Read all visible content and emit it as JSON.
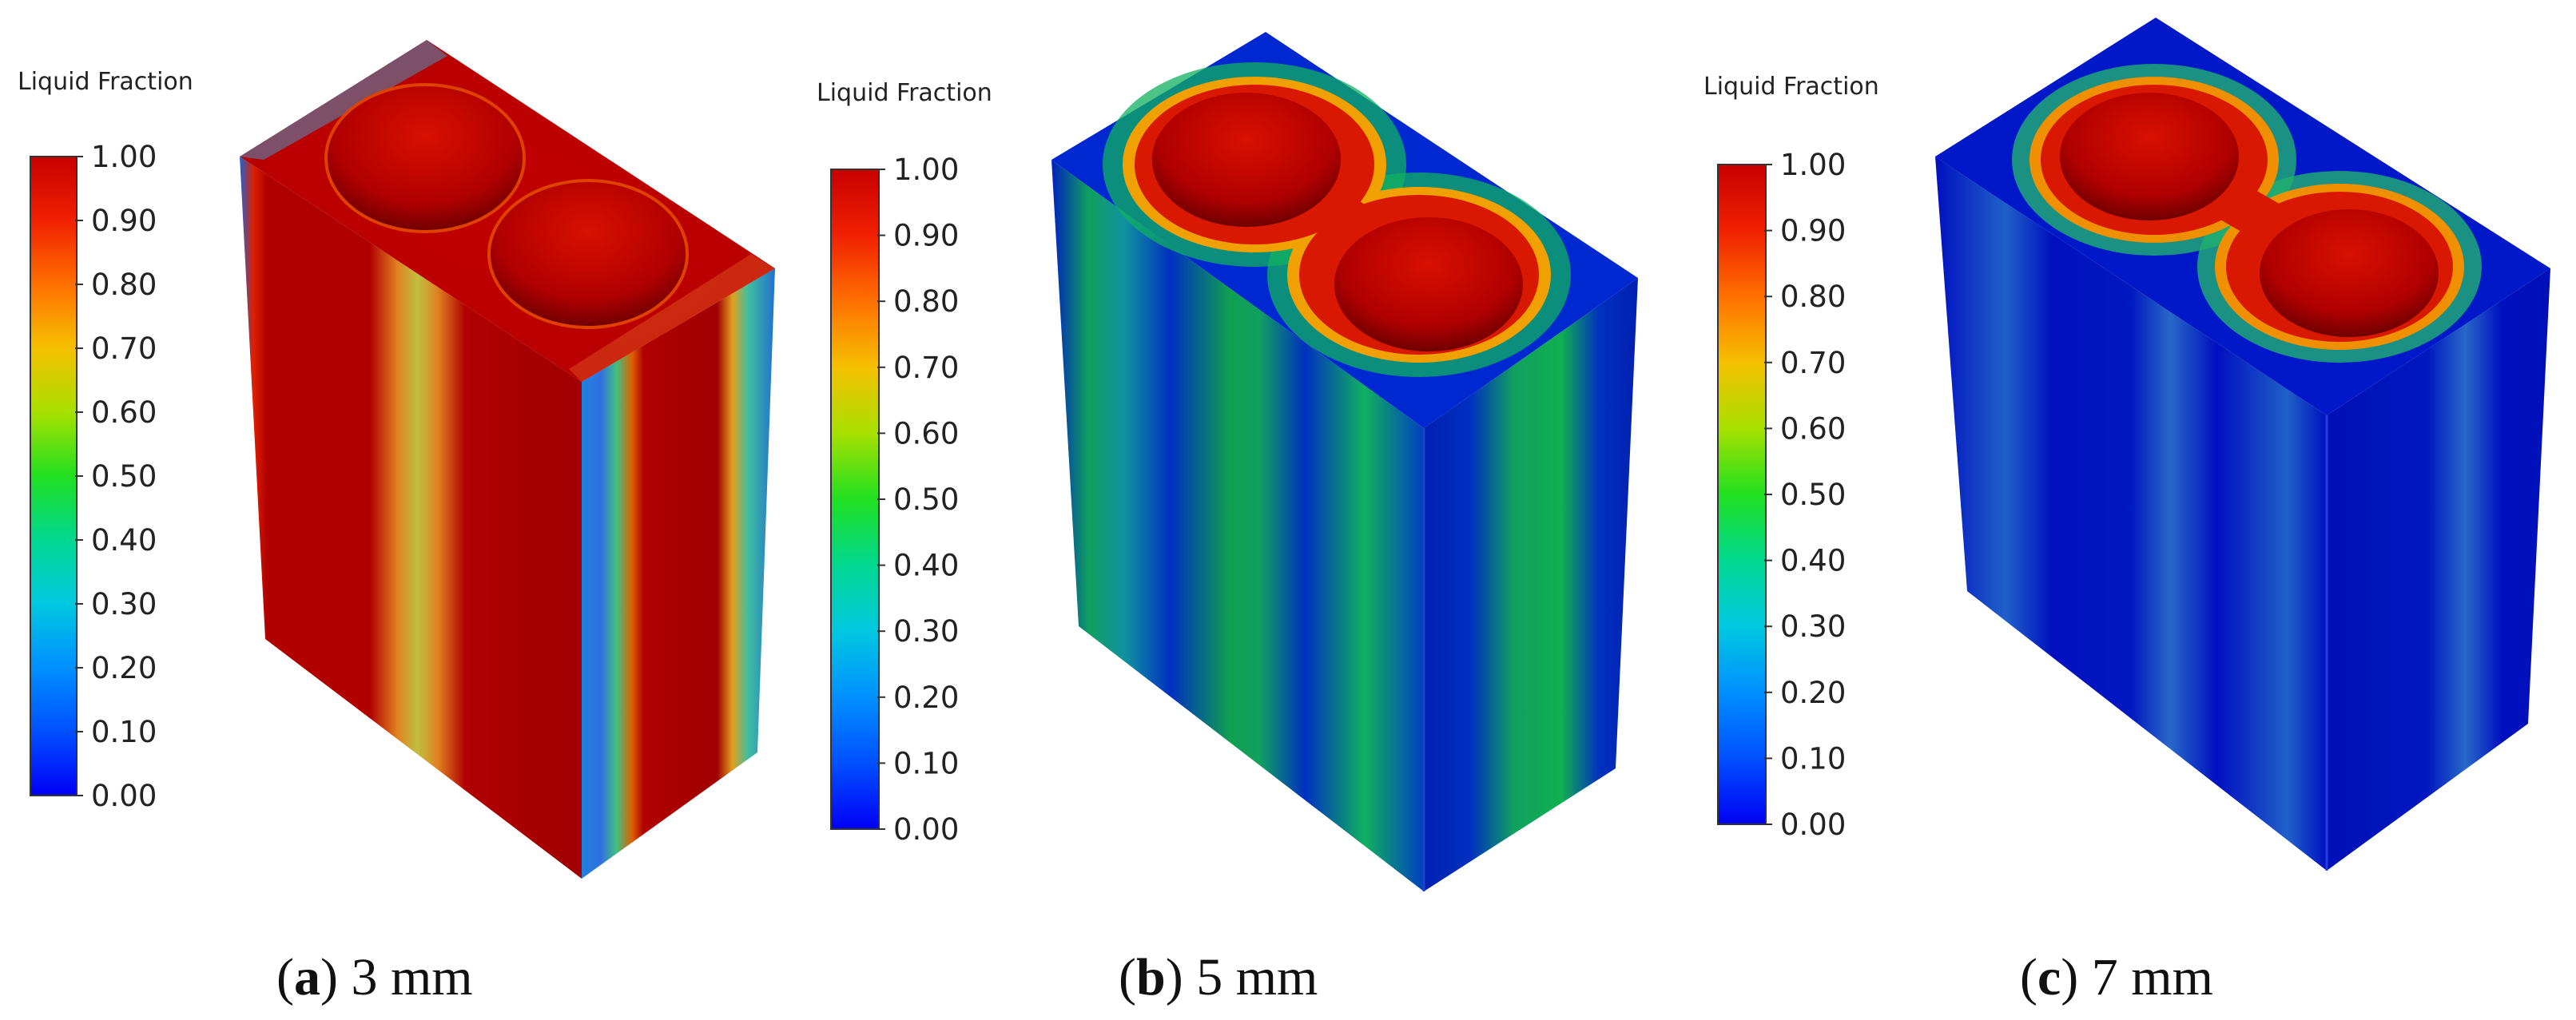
{
  "colorbar": {
    "title": "Liquid Fraction",
    "ticks": [
      "1.00",
      "0.90",
      "0.80",
      "0.70",
      "0.60",
      "0.50",
      "0.40",
      "0.30",
      "0.20",
      "0.10",
      "0.00"
    ],
    "colors": [
      "#0000ff",
      "#0080ff",
      "#00d0ff",
      "#00e060",
      "#60ff00",
      "#e0ff00",
      "#ffd000",
      "#ff8000",
      "#ff3000",
      "#ff0000"
    ]
  },
  "panels": [
    {
      "letter": "a",
      "label": "3 mm"
    },
    {
      "letter": "b",
      "label": "5 mm"
    },
    {
      "letter": "c",
      "label": "7 mm"
    }
  ],
  "caption_parts": {
    "open": "(",
    "close": ")"
  }
}
